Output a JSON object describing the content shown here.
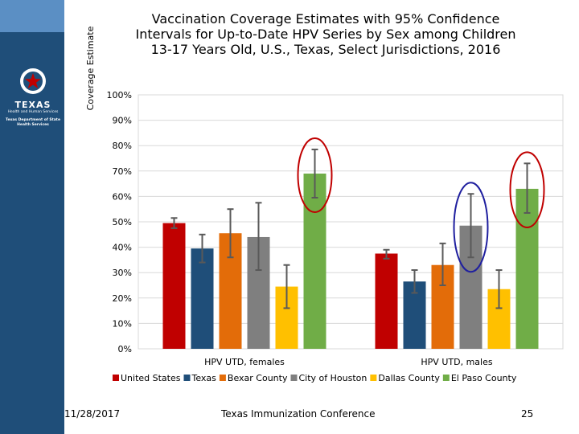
{
  "sidebar": {
    "logo": {
      "name": "TEXAS",
      "line1": "Health and Human Services",
      "line2": "Texas Department of State Health Services"
    }
  },
  "footer": {
    "date": "11/28/2017",
    "conference": "Texas Immunization Conference",
    "page": "25"
  },
  "colors": {
    "sidebar": "#1f4e79",
    "gridline": "#d9d9d9",
    "error_bar": "#595959",
    "highlight_red": "#c00000",
    "highlight_blue": "#1f1f9f"
  },
  "chart_data": {
    "type": "bar",
    "title": "Vaccination Coverage Estimates with 95% Confidence Intervals for Up-to-Date HPV Series by Sex among Children 13-17 Years Old, U.S., Texas, Select Jurisdictions, 2016",
    "ylabel": "Coverage Estimate",
    "xlabel": "",
    "ylim": [
      0,
      100
    ],
    "yticks": [
      "0%",
      "10%",
      "20%",
      "30%",
      "40%",
      "50%",
      "60%",
      "70%",
      "80%",
      "90%",
      "100%"
    ],
    "categories": [
      "HPV UTD, females",
      "HPV UTD, males"
    ],
    "series": [
      {
        "name": "United States",
        "color": "#c00000",
        "values": [
          49.5,
          37.5
        ],
        "ci_low": [
          47.5,
          35.5
        ],
        "ci_high": [
          51.5,
          39.0
        ]
      },
      {
        "name": "Texas",
        "color": "#1f4e79",
        "values": [
          39.5,
          26.5
        ],
        "ci_low": [
          34.0,
          22.0
        ],
        "ci_high": [
          45.0,
          31.0
        ]
      },
      {
        "name": "Bexar County",
        "color": "#e36c09",
        "values": [
          45.5,
          33.0
        ],
        "ci_low": [
          36.0,
          25.0
        ],
        "ci_high": [
          55.0,
          41.5
        ]
      },
      {
        "name": "City of Houston",
        "color": "#7f7f7f",
        "values": [
          44.0,
          48.5
        ],
        "ci_low": [
          31.0,
          36.0
        ],
        "ci_high": [
          57.5,
          61.0
        ]
      },
      {
        "name": "Dallas County",
        "color": "#ffc000",
        "values": [
          24.5,
          23.5
        ],
        "ci_low": [
          16.0,
          16.0
        ],
        "ci_high": [
          33.0,
          31.0
        ]
      },
      {
        "name": "El Paso County",
        "color": "#70ad47",
        "values": [
          69.0,
          63.0
        ],
        "ci_low": [
          59.5,
          53.5
        ],
        "ci_high": [
          78.5,
          73.0
        ]
      }
    ],
    "annotations": [
      {
        "category": 0,
        "series": 5,
        "shape": "ellipse",
        "color": "#c00000"
      },
      {
        "category": 1,
        "series": 3,
        "shape": "ellipse",
        "color": "#1f1f9f"
      },
      {
        "category": 1,
        "series": 5,
        "shape": "ellipse",
        "color": "#c00000"
      }
    ],
    "grid": true,
    "legend_position": "bottom"
  }
}
